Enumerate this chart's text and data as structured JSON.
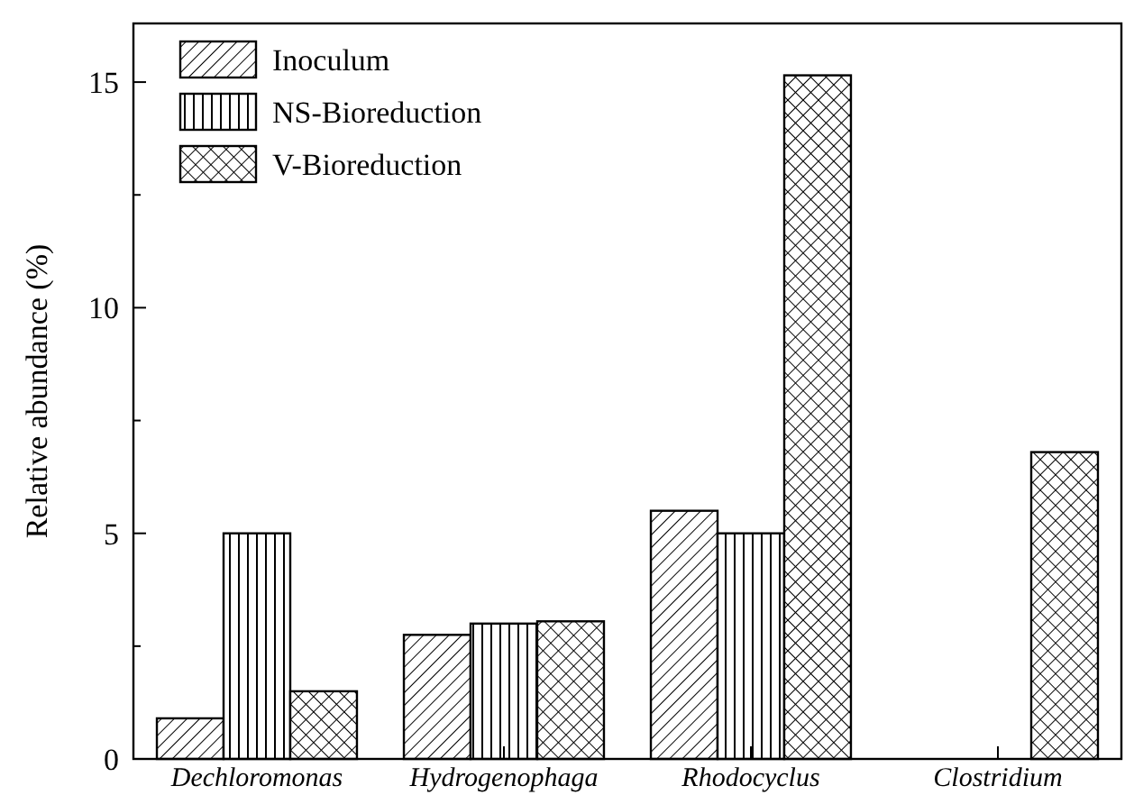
{
  "chart_data": {
    "type": "bar",
    "ylabel": "Relative abundance (%)",
    "categories": [
      "Dechloromonas",
      "Hydrogenophaga",
      "Rhodocyclus",
      "Clostridium"
    ],
    "series": [
      {
        "name": "Inoculum",
        "color": "#000000",
        "values": [
          0.9,
          2.75,
          5.5,
          null
        ]
      },
      {
        "name": "NS-Bioreduction",
        "color": "#000000",
        "values": [
          5.0,
          3.0,
          5.0,
          null
        ]
      },
      {
        "name": "V-Bioreduction",
        "color": "#000000",
        "values": [
          1.5,
          3.05,
          15.15,
          6.8
        ]
      }
    ],
    "ylim": [
      0,
      16.3
    ],
    "yticks": [
      0,
      {
        "value": 2.5,
        "label": null
      },
      5,
      {
        "value": 7.5,
        "label": null
      },
      10,
      {
        "value": 12.5,
        "label": null
      },
      15
    ],
    "legend": "top left"
  }
}
